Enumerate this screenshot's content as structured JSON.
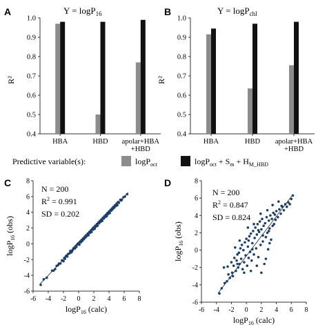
{
  "colors": {
    "logp_oct": "#8c8c8c",
    "logp_full": "#111111",
    "point": "#1f3f66",
    "axis": "#333333"
  },
  "panels": {
    "A": {
      "letter": "A",
      "title_main": "Y = logP",
      "title_sub": "16"
    },
    "B": {
      "letter": "B",
      "title_main": "Y = logP",
      "title_sub": "chl"
    },
    "C": {
      "letter": "C",
      "stats": [
        "N = 200",
        "R",
        "2",
        " = 0.991",
        "SD = 0.202"
      ]
    },
    "D": {
      "letter": "D",
      "stats": [
        "N = 200",
        "R",
        "2",
        " = 0.847",
        "SD = 0.824"
      ]
    }
  },
  "legend": {
    "prefix": "Predictive variable(s):",
    "item1_main": "logP",
    "item1_sub": "oct",
    "item2_parts": [
      "logP",
      "oct",
      " + S",
      "m",
      " + H",
      "M_HBD"
    ]
  },
  "chart_data": [
    {
      "id": "A",
      "type": "bar",
      "title": "Y = logP16",
      "ylabel": "R²",
      "ylim": [
        0.4,
        1.0
      ],
      "yticks": [
        "0.4",
        "0.5",
        "0.6",
        "0.7",
        "0.8",
        "0.9",
        "1.0"
      ],
      "categories": [
        "HBA",
        "HBD",
        "apolar+HBA +HBD"
      ],
      "category_lines": [
        [
          "HBA"
        ],
        [
          "HBD"
        ],
        [
          "apolar+HBA",
          "+HBD"
        ]
      ],
      "series": [
        {
          "name": "logPoct",
          "values": [
            0.97,
            0.5,
            0.77
          ]
        },
        {
          "name": "logPoct + Sm + HM_HBD",
          "values": [
            0.98,
            0.98,
            0.99
          ]
        }
      ]
    },
    {
      "id": "B",
      "type": "bar",
      "title": "Y = logPchl",
      "ylabel": "R²",
      "ylim": [
        0.4,
        1.0
      ],
      "yticks": [
        "0.4",
        "0.5",
        "0.6",
        "0.7",
        "0.8",
        "0.9",
        "1.0"
      ],
      "categories": [
        "HBA",
        "HBD",
        "apolar+HBA +HBD"
      ],
      "category_lines": [
        [
          "HBA"
        ],
        [
          "HBD"
        ],
        [
          "apolar+HBA",
          "+HBD"
        ]
      ],
      "series": [
        {
          "name": "logPoct",
          "values": [
            0.915,
            0.635,
            0.755
          ]
        },
        {
          "name": "logPoct + Sm + HM_HBD",
          "values": [
            0.945,
            0.97,
            0.98
          ]
        }
      ]
    },
    {
      "id": "C",
      "type": "scatter",
      "xlabel": "logP16 (calc)",
      "ylabel": "logP16 (obs)",
      "xlim": [
        -6,
        8
      ],
      "ylim": [
        -6,
        8
      ],
      "xticks": [
        "-6",
        "-4",
        "-2",
        "0",
        "2",
        "4",
        "6",
        "8"
      ],
      "yticks": [
        "-6",
        "-4",
        "-2",
        "0",
        "2",
        "4",
        "6",
        "8"
      ],
      "n": 200,
      "r2": 0.991,
      "sd": 0.202,
      "fit_line": [
        [
          -5.1,
          -5.1
        ],
        [
          6.5,
          6.5
        ]
      ],
      "points": [
        [
          -5.0,
          -5.2
        ],
        [
          -4.6,
          -4.5
        ],
        [
          -4.2,
          -4.3
        ],
        [
          -3.5,
          -3.4
        ],
        [
          -3.1,
          -3.2
        ],
        [
          -2.9,
          -2.8
        ],
        [
          -2.6,
          -2.5
        ],
        [
          -2.4,
          -2.5
        ],
        [
          -2.2,
          -2.1
        ],
        [
          -2.0,
          -2.2
        ],
        [
          -1.9,
          -1.8
        ],
        [
          -1.7,
          -1.6
        ],
        [
          -1.5,
          -1.6
        ],
        [
          -1.4,
          -1.3
        ],
        [
          -1.2,
          -1.2
        ],
        [
          -1.1,
          -0.9
        ],
        [
          -1.0,
          -1.1
        ],
        [
          -0.8,
          -0.8
        ],
        [
          -0.7,
          -0.6
        ],
        [
          -0.5,
          -0.6
        ],
        [
          -0.4,
          -0.3
        ],
        [
          -0.3,
          -0.4
        ],
        [
          -0.2,
          -0.1
        ],
        [
          -0.1,
          0.0
        ],
        [
          0.0,
          0.1
        ],
        [
          0.1,
          -0.1
        ],
        [
          0.2,
          0.3
        ],
        [
          0.3,
          0.2
        ],
        [
          0.4,
          0.5
        ],
        [
          0.5,
          0.4
        ],
        [
          0.6,
          0.7
        ],
        [
          0.7,
          0.6
        ],
        [
          0.8,
          0.9
        ],
        [
          0.9,
          0.8
        ],
        [
          1.0,
          1.1
        ],
        [
          1.1,
          1.0
        ],
        [
          1.2,
          1.3
        ],
        [
          1.3,
          1.1
        ],
        [
          1.4,
          1.5
        ],
        [
          1.5,
          1.4
        ],
        [
          1.6,
          1.7
        ],
        [
          1.7,
          1.5
        ],
        [
          1.8,
          1.9
        ],
        [
          1.9,
          1.8
        ],
        [
          2.0,
          2.1
        ],
        [
          2.1,
          1.9
        ],
        [
          2.2,
          2.3
        ],
        [
          2.3,
          2.2
        ],
        [
          2.4,
          2.5
        ],
        [
          2.5,
          2.3
        ],
        [
          2.6,
          2.7
        ],
        [
          2.7,
          2.6
        ],
        [
          2.8,
          2.9
        ],
        [
          2.9,
          2.8
        ],
        [
          3.0,
          3.1
        ],
        [
          3.1,
          2.9
        ],
        [
          3.2,
          3.3
        ],
        [
          3.3,
          3.2
        ],
        [
          3.4,
          3.5
        ],
        [
          3.5,
          3.4
        ],
        [
          3.6,
          3.7
        ],
        [
          3.7,
          3.5
        ],
        [
          3.8,
          3.9
        ],
        [
          3.9,
          3.8
        ],
        [
          4.0,
          4.1
        ],
        [
          4.1,
          3.9
        ],
        [
          4.2,
          4.3
        ],
        [
          4.3,
          4.2
        ],
        [
          4.4,
          4.5
        ],
        [
          4.5,
          4.4
        ],
        [
          4.6,
          4.7
        ],
        [
          4.7,
          4.6
        ],
        [
          4.8,
          4.9
        ],
        [
          4.9,
          4.8
        ],
        [
          5.0,
          5.1
        ],
        [
          5.1,
          4.9
        ],
        [
          5.2,
          5.3
        ],
        [
          5.3,
          5.2
        ],
        [
          5.5,
          5.6
        ],
        [
          5.7,
          5.6
        ],
        [
          5.9,
          5.9
        ],
        [
          6.1,
          6.0
        ],
        [
          6.4,
          6.3
        ],
        [
          -3.3,
          -3.4
        ],
        [
          -2.7,
          -2.7
        ],
        [
          -1.6,
          -1.5
        ],
        [
          -0.6,
          -0.5
        ],
        [
          0.35,
          0.3
        ],
        [
          1.25,
          1.2
        ],
        [
          2.15,
          2.1
        ],
        [
          3.05,
          3.0
        ],
        [
          3.95,
          3.9
        ],
        [
          4.85,
          4.8
        ],
        [
          5.6,
          5.5
        ],
        [
          -1.8,
          -1.9
        ],
        [
          -0.9,
          -1.0
        ],
        [
          0.15,
          0.2
        ],
        [
          1.05,
          1.0
        ],
        [
          1.95,
          2.0
        ],
        [
          2.85,
          2.9
        ],
        [
          3.75,
          3.7
        ],
        [
          4.65,
          4.6
        ]
      ]
    },
    {
      "id": "D",
      "type": "scatter",
      "xlabel": "logP16 (calc)",
      "ylabel": "logP16 (obs)",
      "xlim": [
        -6,
        8
      ],
      "ylim": [
        -6,
        8
      ],
      "xticks": [
        "-6",
        "-4",
        "-2",
        "0",
        "2",
        "4",
        "6",
        "8"
      ],
      "yticks": [
        "-6",
        "-4",
        "-2",
        "0",
        "2",
        "4",
        "6",
        "8"
      ],
      "n": 200,
      "r2": 0.847,
      "sd": 0.824,
      "fit_line": [
        [
          -3.8,
          -5.0
        ],
        [
          6.2,
          6.4
        ]
      ],
      "points": [
        [
          -3.6,
          -5.0
        ],
        [
          -3.3,
          -4.4
        ],
        [
          -2.9,
          -3.8
        ],
        [
          -2.6,
          -3.6
        ],
        [
          -2.4,
          -2.8
        ],
        [
          -2.2,
          -3.2
        ],
        [
          -2.0,
          -1.4
        ],
        [
          -1.9,
          -2.6
        ],
        [
          -1.7,
          -1.8
        ],
        [
          -1.6,
          -0.9
        ],
        [
          -1.4,
          -2.4
        ],
        [
          -1.3,
          -1.2
        ],
        [
          -1.2,
          -0.5
        ],
        [
          -1.1,
          -2.0
        ],
        [
          -1.0,
          -0.3
        ],
        [
          -0.9,
          -1.6
        ],
        [
          -0.8,
          0.2
        ],
        [
          -0.7,
          -1.0
        ],
        [
          -0.6,
          0.6
        ],
        [
          -0.5,
          -2.2
        ],
        [
          -0.4,
          0.0
        ],
        [
          -0.3,
          -1.4
        ],
        [
          -0.2,
          0.9
        ],
        [
          -0.1,
          -0.6
        ],
        [
          0.0,
          1.3
        ],
        [
          0.1,
          -1.8
        ],
        [
          0.2,
          0.4
        ],
        [
          0.3,
          -0.9
        ],
        [
          0.4,
          1.6
        ],
        [
          0.5,
          -0.2
        ],
        [
          0.6,
          1.9
        ],
        [
          0.7,
          -1.2
        ],
        [
          0.8,
          0.8
        ],
        [
          0.9,
          2.2
        ],
        [
          1.0,
          -0.5
        ],
        [
          1.1,
          1.4
        ],
        [
          1.2,
          2.6
        ],
        [
          1.3,
          0.2
        ],
        [
          1.4,
          1.8
        ],
        [
          1.5,
          3.0
        ],
        [
          1.6,
          -0.8
        ],
        [
          1.7,
          2.1
        ],
        [
          1.8,
          3.3
        ],
        [
          1.9,
          0.6
        ],
        [
          2.0,
          2.4
        ],
        [
          2.1,
          3.6
        ],
        [
          2.2,
          1.0
        ],
        [
          2.3,
          2.8
        ],
        [
          2.4,
          -1.6
        ],
        [
          2.5,
          3.1
        ],
        [
          2.6,
          1.5
        ],
        [
          2.7,
          3.8
        ],
        [
          2.8,
          2.0
        ],
        [
          2.9,
          0.1
        ],
        [
          3.0,
          3.4
        ],
        [
          3.1,
          2.5
        ],
        [
          3.2,
          4.0
        ],
        [
          3.3,
          1.2
        ],
        [
          3.4,
          3.6
        ],
        [
          3.5,
          2.8
        ],
        [
          3.6,
          4.3
        ],
        [
          3.7,
          3.0
        ],
        [
          3.8,
          4.1
        ],
        [
          3.9,
          3.5
        ],
        [
          4.0,
          4.5
        ],
        [
          4.2,
          3.8
        ],
        [
          4.4,
          4.7
        ],
        [
          4.6,
          4.2
        ],
        [
          4.8,
          5.0
        ],
        [
          5.0,
          4.6
        ],
        [
          5.2,
          5.3
        ],
        [
          5.4,
          5.0
        ],
        [
          5.6,
          5.5
        ],
        [
          5.8,
          5.3
        ],
        [
          6.0,
          5.9
        ],
        [
          6.2,
          6.3
        ],
        [
          -3.0,
          -2.0
        ],
        [
          -2.5,
          -1.9
        ],
        [
          -1.8,
          -3.0
        ],
        [
          -1.5,
          0.3
        ],
        [
          -0.9,
          1.1
        ],
        [
          0.2,
          2.6
        ],
        [
          0.6,
          -2.4
        ],
        [
          1.4,
          -1.8
        ],
        [
          2.0,
          -2.6
        ],
        [
          2.6,
          -1.0
        ],
        [
          3.1,
          0.8
        ],
        [
          -0.3,
          -2.6
        ],
        [
          1.0,
          3.0
        ],
        [
          1.9,
          4.2
        ],
        [
          2.8,
          4.6
        ],
        [
          3.5,
          5.2
        ],
        [
          4.3,
          5.6
        ],
        [
          0.3,
          1.1
        ],
        [
          1.6,
          2.3
        ],
        [
          2.2,
          1.7
        ],
        [
          3.0,
          2.2
        ],
        [
          -1.2,
          -1.6
        ],
        [
          0.8,
          0.1
        ],
        [
          4.7,
          5.1
        ]
      ]
    }
  ]
}
